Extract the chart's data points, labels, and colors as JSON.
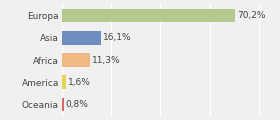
{
  "categories": [
    "Europa",
    "Asia",
    "Africa",
    "America",
    "Oceania"
  ],
  "values": [
    70.2,
    16.1,
    11.3,
    1.6,
    0.8
  ],
  "labels": [
    "70,2%",
    "16,1%",
    "11,3%",
    "1,6%",
    "0,8%"
  ],
  "bar_colors": [
    "#b5c98e",
    "#6e8ebf",
    "#f0b983",
    "#e8d44d",
    "#e06464"
  ],
  "background_color": "#f0f0f0",
  "xlim": [
    0,
    85
  ],
  "label_fontsize": 6.5,
  "category_fontsize": 6.5,
  "bar_height": 0.6,
  "grid_color": "#ffffff",
  "grid_positions": [
    0,
    20,
    40,
    60,
    80
  ]
}
